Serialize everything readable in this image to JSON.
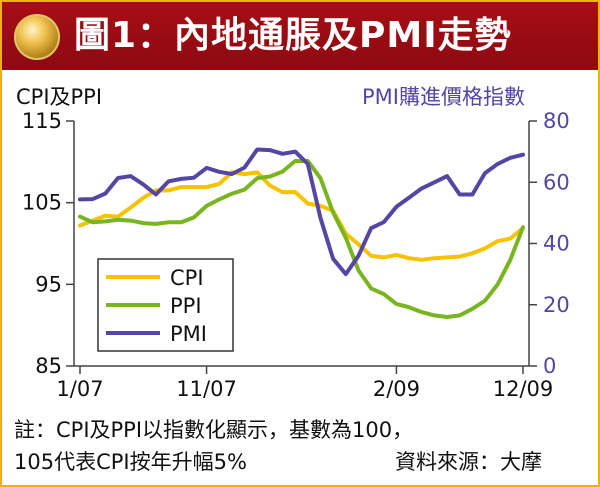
{
  "header": {
    "title": "圖1：內地通脹及PMI走勢"
  },
  "chart_data": {
    "type": "line",
    "left_axis_label": "CPI及PPI",
    "right_axis_label": "PMI購進價格指數",
    "left_ticks": [
      "115",
      "105",
      "95",
      "85"
    ],
    "right_ticks": [
      "80",
      "60",
      "40",
      "20",
      "0"
    ],
    "left_ylim": [
      85,
      115
    ],
    "right_ylim": [
      0,
      80
    ],
    "x_ticks": [
      "1/07",
      "11/07",
      "2/09",
      "12/09"
    ],
    "x_tick_index": [
      0,
      10,
      25,
      35
    ],
    "series": [
      {
        "name": "CPI",
        "axis": "left",
        "color": "#f7c200",
        "values": [
          102.2,
          102.8,
          103.4,
          103.3,
          104.4,
          105.6,
          106.5,
          106.5,
          106.9,
          106.9,
          106.9,
          107.3,
          108.7,
          108.5,
          108.7,
          107.1,
          106.3,
          106.3,
          104.9,
          104.6,
          104.0,
          101.2,
          99.9,
          98.5,
          98.3,
          98.6,
          98.2,
          98.0,
          98.2,
          98.3,
          98.4,
          98.8,
          99.4,
          100.3,
          100.6,
          101.9
        ]
      },
      {
        "name": "PPI",
        "axis": "left",
        "color": "#78b51f",
        "values": [
          103.3,
          102.6,
          102.7,
          102.9,
          102.8,
          102.5,
          102.4,
          102.6,
          102.6,
          103.2,
          104.6,
          105.4,
          106.1,
          106.6,
          108.0,
          108.2,
          108.8,
          110.1,
          110.1,
          108.0,
          103.8,
          100.7,
          96.7,
          94.5,
          93.8,
          92.6,
          92.2,
          91.6,
          91.2,
          91.0,
          91.2,
          92.0,
          93.0,
          95.0,
          98.0,
          102.0
        ]
      },
      {
        "name": "PMI",
        "axis": "right",
        "color": "#5546a4",
        "values": [
          54.4,
          54.5,
          56.3,
          61.4,
          62.0,
          59.3,
          56.0,
          60.3,
          61.1,
          61.5,
          64.7,
          63.4,
          62.7,
          64.8,
          70.7,
          70.5,
          69.3,
          70.0,
          66.0,
          48.3,
          35.0,
          30.0,
          36.0,
          45.0,
          47.0,
          52.0,
          55.0,
          58.0,
          60.0,
          62.0,
          56.0,
          56.0,
          63.0,
          66.0,
          68.0,
          69.0
        ]
      }
    ]
  },
  "notes": {
    "line1": "註：CPI及PPI以指數化顯示，基數為100，",
    "line2": "105代表CPI按年升幅5%",
    "source": "資料來源：大摩"
  }
}
